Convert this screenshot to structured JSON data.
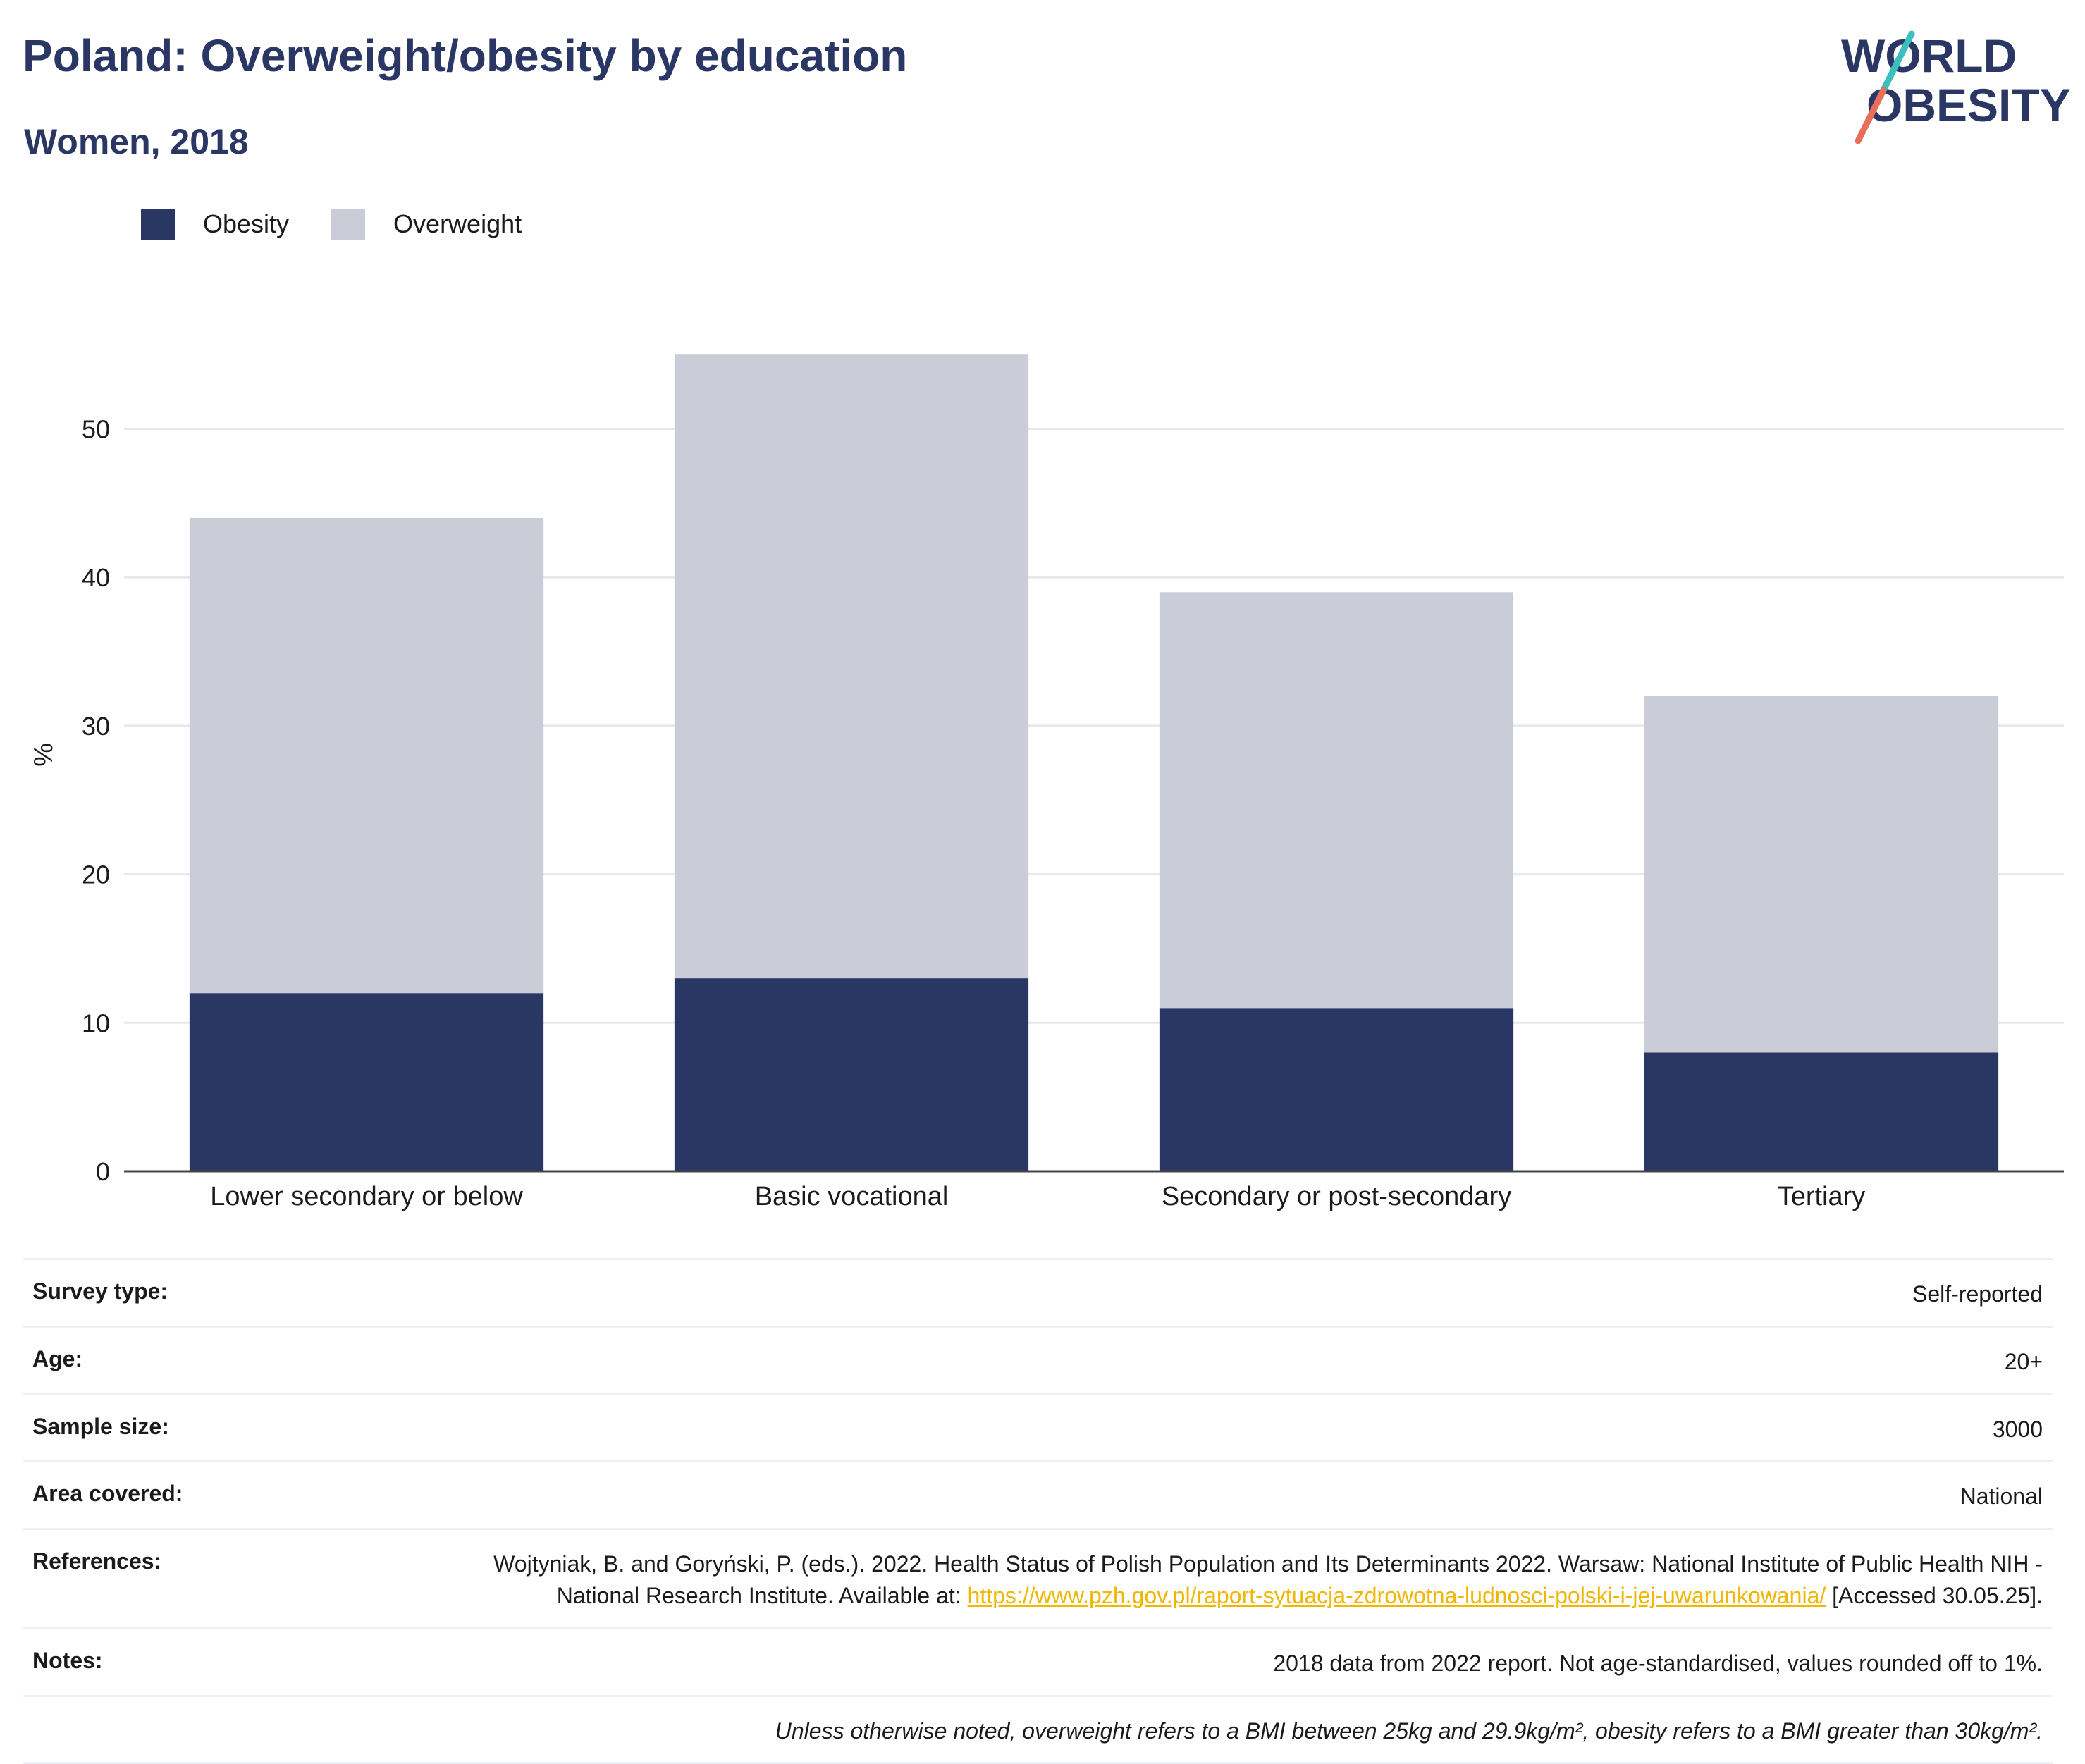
{
  "header": {
    "title": "Poland: Overweight/obesity by education",
    "subtitle": "Women, 2018",
    "logo_line1": "WORLD",
    "logo_line2": "OBESITY"
  },
  "colors": {
    "obesity": "#2a3663",
    "overweight": "#cacdd8",
    "title": "#2a3663",
    "link": "#f2b600",
    "logo_teal": "#3dbfbf",
    "logo_coral": "#e8705a"
  },
  "chart_data": {
    "type": "bar",
    "stacked": true,
    "categories": [
      "Lower secondary or below",
      "Basic vocational",
      "Secondary or post-secondary",
      "Tertiary"
    ],
    "series": [
      {
        "name": "Obesity",
        "values": [
          12,
          13,
          11,
          8
        ]
      },
      {
        "name": "Overweight",
        "values": [
          32,
          42,
          28,
          24
        ]
      }
    ],
    "ylabel": "%",
    "yticks": [
      0,
      10,
      20,
      30,
      40,
      50
    ],
    "ylim": [
      0,
      58
    ],
    "grid": true,
    "legend_position": "top-left"
  },
  "meta": {
    "survey_type_label": "Survey type:",
    "survey_type_value": "Self-reported",
    "age_label": "Age:",
    "age_value": "20+",
    "sample_label": "Sample size:",
    "sample_value": "3000",
    "area_label": "Area covered:",
    "area_value": "National",
    "references_label": "References:",
    "references_text": "Wojtyniak, B. and Goryński, P. (eds.). 2022. Health Status of Polish Population and Its Determinants 2022. Warsaw: National Institute of Public Health NIH - National Research Institute. Available at: ",
    "references_link": "https://www.pzh.gov.pl/raport-sytuacja-zdrowotna-ludnosci-polski-i-jej-uwarunkowania/",
    "references_accessed": " [Accessed 30.05.25].",
    "notes_label": "Notes:",
    "notes_value": "2018 data from 2022 report. Not age-standardised, values rounded off to 1%.",
    "footnote": "Unless otherwise noted, overweight refers to a BMI between 25kg and 29.9kg/m², obesity refers to a BMI greater than 30kg/m²."
  }
}
